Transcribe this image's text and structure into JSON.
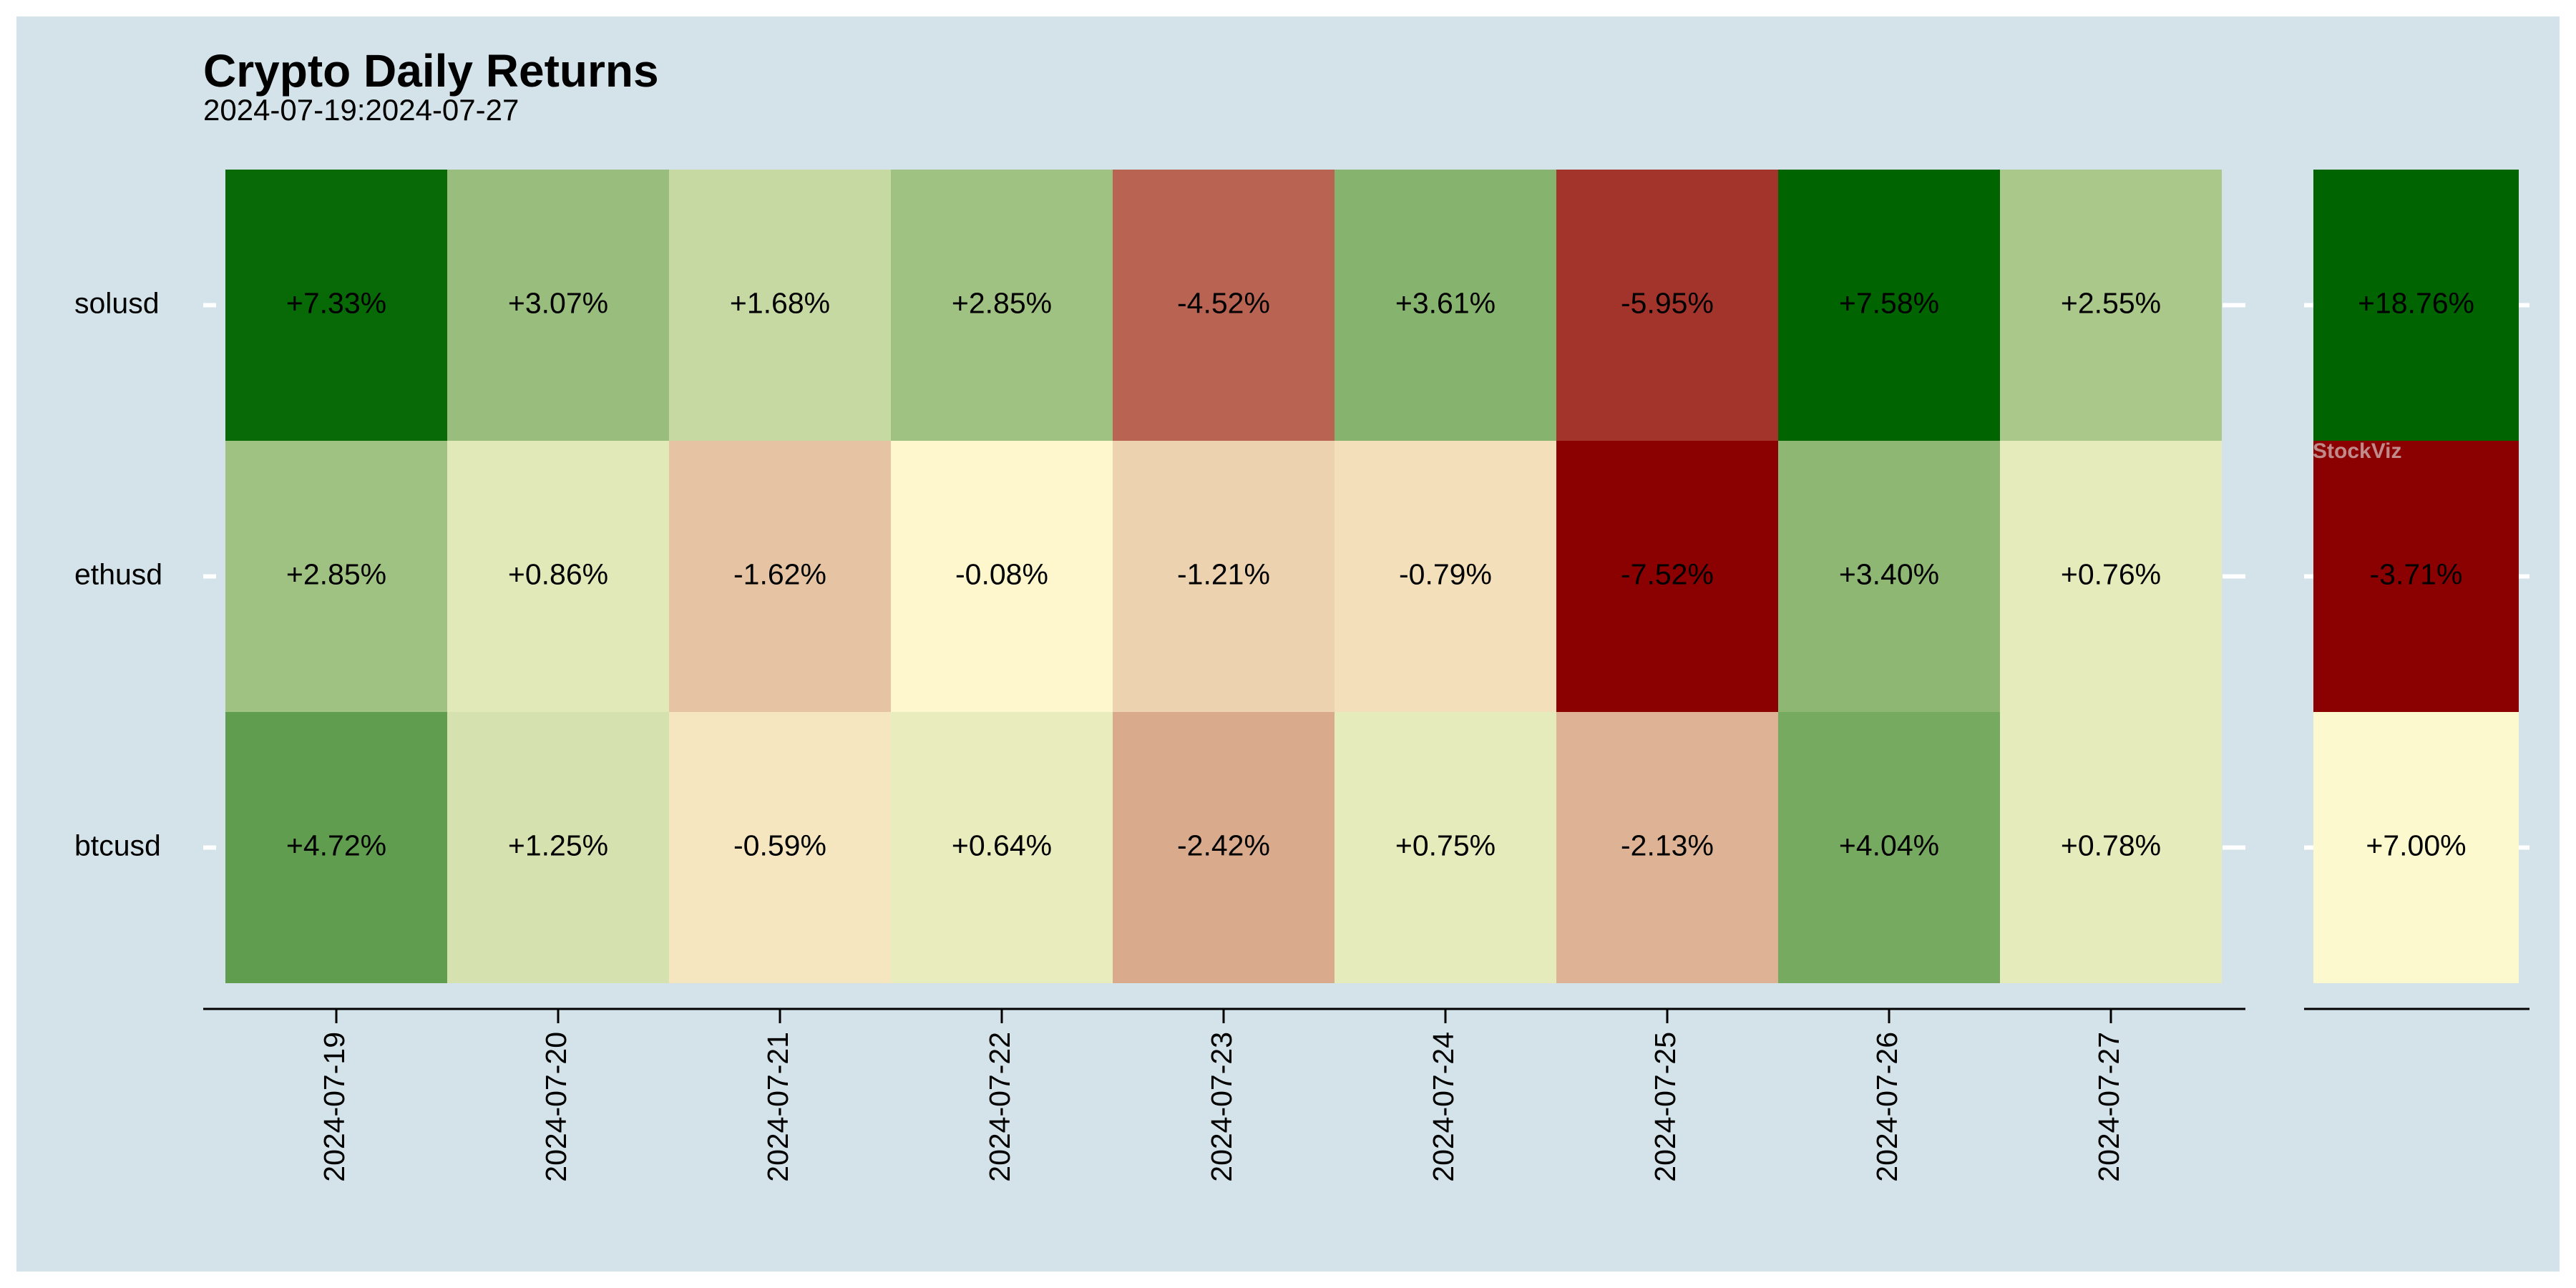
{
  "chart_data": {
    "type": "heatmap",
    "title": "Crypto Daily Returns",
    "subtitle": "2024-07-19:2024-07-27",
    "rows": [
      "solusd",
      "ethusd",
      "btcusd"
    ],
    "columns": [
      "2024-07-19",
      "2024-07-20",
      "2024-07-21",
      "2024-07-22",
      "2024-07-23",
      "2024-07-24",
      "2024-07-25",
      "2024-07-26",
      "2024-07-27"
    ],
    "values": [
      [
        7.33,
        3.07,
        1.68,
        2.85,
        -4.52,
        3.61,
        -5.95,
        7.58,
        2.55
      ],
      [
        2.85,
        0.86,
        -1.62,
        -0.08,
        -1.21,
        -0.79,
        -7.52,
        3.4,
        0.76
      ],
      [
        4.72,
        1.25,
        -0.59,
        0.64,
        -2.42,
        0.75,
        -2.13,
        4.04,
        0.78
      ]
    ],
    "labels": [
      [
        "+7.33%",
        "+3.07%",
        "+1.68%",
        "+2.85%",
        "-4.52%",
        "+3.61%",
        "-5.95%",
        "+7.58%",
        "+2.55%"
      ],
      [
        "+2.85%",
        "+0.86%",
        "-1.62%",
        "-0.08%",
        "-1.21%",
        "-0.79%",
        "-7.52%",
        "+3.40%",
        "+0.76%"
      ],
      [
        "+4.72%",
        "+1.25%",
        "-0.59%",
        "+0.64%",
        "-2.42%",
        "+0.75%",
        "-2.13%",
        "+4.04%",
        "+0.78%"
      ]
    ],
    "totals": {
      "values": [
        18.76,
        -3.71,
        7.0
      ],
      "labels": [
        "+18.76%",
        "-3.71%",
        "+7.00%"
      ]
    },
    "colors": {
      "low": "#8b0000",
      "mid": "#fffad0",
      "high": "#006400",
      "background": "#d4e3ea"
    }
  },
  "watermark": "StockViz"
}
